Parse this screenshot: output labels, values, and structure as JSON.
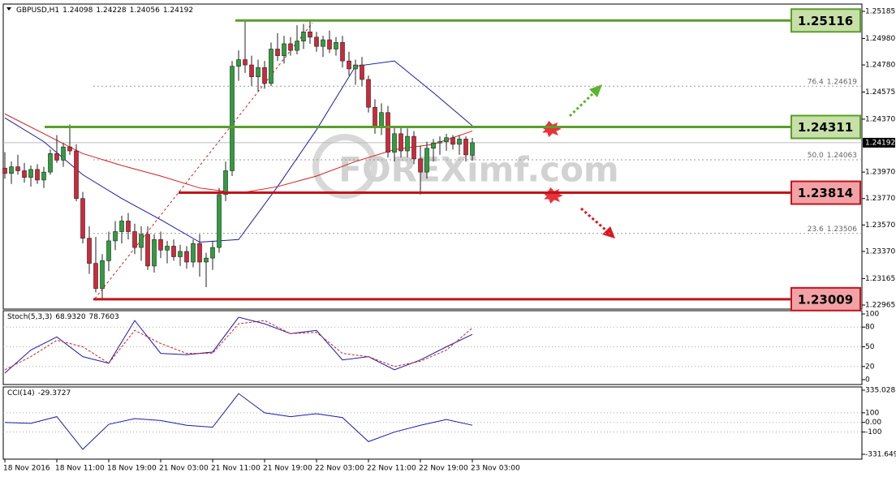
{
  "chart_data": {
    "type": "candlestick",
    "symbol": "GBPUSD,H1",
    "ohlc": [
      1.24098,
      1.24228,
      1.24056,
      1.24192
    ],
    "watermark": "FOREXimf.com",
    "up_color": "#2e9e3e",
    "down_color": "#d0283a",
    "categories": [
      "18 Nov 2016",
      null,
      null,
      null,
      null,
      null,
      null,
      null,
      "18 Nov 11:00",
      null,
      null,
      null,
      null,
      null,
      null,
      null,
      "18 Nov 19:00",
      null,
      null,
      null,
      null,
      null,
      null,
      null,
      "21 Nov 03:00",
      null,
      null,
      null,
      null,
      null,
      null,
      null,
      "21 Nov 11:00",
      null,
      null,
      null,
      null,
      null,
      null,
      null,
      "21 Nov 19:00",
      null,
      null,
      null,
      null,
      null,
      null,
      null,
      "22 Nov 03:00",
      null,
      null,
      null,
      null,
      null,
      null,
      null,
      "22 Nov 11:00",
      null,
      null,
      null,
      null,
      null,
      null,
      null,
      "22 Nov 19:00",
      null,
      null,
      null,
      null,
      null,
      null,
      null,
      "23 Nov 03:00"
    ],
    "open": [
      1.24,
      1.2396,
      1.2401,
      1.2398,
      1.2393,
      1.2399,
      1.2391,
      1.2397,
      1.2411,
      1.2406,
      1.2416,
      1.2413,
      1.2377,
      1.2347,
      1.2328,
      1.2309,
      1.233,
      1.2345,
      1.2352,
      1.236,
      1.2352,
      1.234,
      1.235,
      1.2326,
      1.2346,
      1.2338,
      1.2341,
      1.2333,
      1.2337,
      1.2329,
      1.2343,
      1.2329,
      1.2332,
      1.234,
      1.238,
      1.2398,
      1.2477,
      1.2482,
      1.2478,
      1.2469,
      1.2476,
      1.2464,
      1.249,
      1.2485,
      1.2494,
      1.2489,
      1.2496,
      1.2503,
      1.2499,
      1.2492,
      1.2497,
      1.249,
      1.2495,
      1.2481,
      1.2475,
      1.2478,
      1.2467,
      1.2446,
      1.2431,
      1.2442,
      1.2412,
      1.2426,
      1.2413,
      1.2424,
      1.2407,
      1.2397,
      1.2415,
      1.2419,
      1.242,
      1.2423,
      1.2418,
      1.2422,
      1.24098
    ],
    "high": [
      1.2412,
      1.2405,
      1.241,
      1.2404,
      1.2402,
      1.2403,
      1.2401,
      1.2414,
      1.2425,
      1.2419,
      1.2433,
      1.2418,
      1.2382,
      1.2356,
      1.2348,
      1.2335,
      1.2352,
      1.236,
      1.2364,
      1.2366,
      1.2358,
      1.2356,
      1.2356,
      1.235,
      1.2352,
      1.2345,
      1.2346,
      1.2342,
      1.2341,
      1.2346,
      1.235,
      1.2336,
      1.2345,
      1.2385,
      1.2405,
      1.2481,
      1.2489,
      1.2512,
      1.2485,
      1.2482,
      1.2481,
      1.2495,
      1.2502,
      1.25,
      1.2499,
      1.2508,
      1.2509,
      1.2511,
      1.2503,
      1.25,
      1.2504,
      1.2499,
      1.25,
      1.2488,
      1.2482,
      1.2484,
      1.247,
      1.2452,
      1.2449,
      1.2447,
      1.2432,
      1.2432,
      1.243,
      1.2428,
      1.2417,
      1.242,
      1.2422,
      1.2424,
      1.2426,
      1.2425,
      1.2425,
      1.2424,
      1.24228
    ],
    "low": [
      1.2392,
      1.2388,
      1.2395,
      1.2389,
      1.2386,
      1.2388,
      1.2385,
      1.2395,
      1.2404,
      1.2401,
      1.241,
      1.2375,
      1.2343,
      1.232,
      1.2306,
      1.2301,
      1.2322,
      1.2338,
      1.2343,
      1.2346,
      1.2335,
      1.233,
      1.2323,
      1.2321,
      1.2332,
      1.2328,
      1.233,
      1.2326,
      1.2324,
      1.2325,
      1.2318,
      1.231,
      1.2323,
      1.2336,
      1.2375,
      1.2394,
      1.2466,
      1.2472,
      1.2462,
      1.2458,
      1.246,
      1.2462,
      1.2481,
      1.2479,
      1.2485,
      1.2486,
      1.249,
      1.2494,
      1.2488,
      1.2484,
      1.2487,
      1.2485,
      1.2476,
      1.247,
      1.2463,
      1.2462,
      1.2442,
      1.2426,
      1.2425,
      1.2408,
      1.2405,
      1.2408,
      1.2408,
      1.2403,
      1.238,
      1.2392,
      1.2405,
      1.241,
      1.2413,
      1.2414,
      1.241,
      1.2405,
      1.24056
    ],
    "close": [
      1.2396,
      1.2401,
      1.2398,
      1.2393,
      1.2399,
      1.2391,
      1.2397,
      1.2411,
      1.2406,
      1.2416,
      1.2413,
      1.2377,
      1.2347,
      1.2328,
      1.2309,
      1.233,
      1.2345,
      1.2352,
      1.236,
      1.2352,
      1.234,
      1.235,
      1.2326,
      1.2346,
      1.2338,
      1.2341,
      1.2333,
      1.2337,
      1.2329,
      1.2343,
      1.2329,
      1.2332,
      1.234,
      1.238,
      1.2398,
      1.2477,
      1.2482,
      1.2478,
      1.2469,
      1.2476,
      1.2464,
      1.249,
      1.2485,
      1.2494,
      1.2489,
      1.2496,
      1.2503,
      1.2499,
      1.2492,
      1.2497,
      1.249,
      1.2495,
      1.2481,
      1.2475,
      1.2478,
      1.2467,
      1.2446,
      1.2431,
      1.2442,
      1.2412,
      1.2426,
      1.2413,
      1.2424,
      1.2407,
      1.2397,
      1.2415,
      1.2419,
      1.242,
      1.2423,
      1.2418,
      1.2422,
      1.241,
      1.24192
    ],
    "ylim": [
      1.22965,
      1.25185
    ],
    "yticks": [
      1.25185,
      {
        "value": 1.2498,
        "label": "1.24980"
      },
      {
        "value": 1.2478,
        "label": "1.24780"
      },
      1.24575,
      {
        "value": 1.2437,
        "label": "1.24370"
      },
      {
        "value": 1.2397,
        "label": "1.23970"
      },
      {
        "value": 1.2377,
        "label": "1.23770"
      },
      {
        "value": 1.2357,
        "label": "1.23570"
      },
      {
        "value": 1.2337,
        "label": "1.23370"
      },
      1.23165,
      1.22965
    ],
    "ma_lines": [
      {
        "color": "#1a1aa8",
        "x": [
          0,
          6,
          12,
          18,
          24,
          30,
          36,
          42,
          48,
          54,
          60,
          66,
          72
        ],
        "values": [
          1.2438,
          1.242,
          1.2395,
          1.2377,
          1.2361,
          1.2344,
          1.2346,
          1.2386,
          1.2429,
          1.2477,
          1.2481,
          1.2457,
          1.2432
        ]
      },
      {
        "color": "#d42020",
        "x": [
          0,
          6,
          12,
          18,
          24,
          30,
          36,
          42,
          48,
          54,
          60,
          66,
          72
        ],
        "values": [
          1.2441,
          1.2426,
          1.2411,
          1.2402,
          1.2394,
          1.2385,
          1.2381,
          1.2386,
          1.2394,
          1.2405,
          1.2414,
          1.2418,
          1.2428
        ]
      }
    ],
    "levels": [
      {
        "value": 1.25116,
        "color": "#5a9e2a",
        "box_fill": "#c6e0a8"
      },
      {
        "value": 1.24311,
        "color": "#5a9e2a",
        "box_fill": "#c6e0a8"
      },
      {
        "value": 1.23814,
        "color": "#c0141c",
        "box_fill": "#f2a2a6"
      },
      {
        "value": 1.23009,
        "color": "#c0141c",
        "box_fill": "#f2a2a6"
      }
    ],
    "fib_levels": [
      {
        "ratio": 76.4,
        "price": 1.24619
      },
      {
        "ratio": {
          "value": 50,
          "label": "50.0"
        },
        "price": 1.24063
      },
      {
        "ratio": 23.6,
        "price": 1.23506
      }
    ],
    "indicators": [
      {
        "label": "Stoch(5,3,3)",
        "readings": [
          {
            "value": 68.932,
            "label": "68.9320"
          },
          78.7603
        ],
        "ylim": [
          0,
          100
        ],
        "yticks": [
          100,
          80,
          50,
          20,
          0
        ],
        "x": [
          0,
          4,
          8,
          12,
          16,
          20,
          24,
          28,
          32,
          36,
          40,
          44,
          48,
          52,
          56,
          60,
          64,
          68,
          72
        ],
        "series": [
          {
            "color": "#1a1aa8",
            "dashed": false,
            "values": [
              10,
              45,
              65,
              35,
              25,
              90,
              40,
              38,
              42,
              95,
              85,
              70,
              75,
              30,
              35,
              15,
              30,
              50,
              68.932
            ]
          },
          {
            "color": "#d42020",
            "dashed": true,
            "values": [
              15,
              35,
              60,
              50,
              25,
              75,
              55,
              40,
              40,
              85,
              90,
              70,
              72,
              40,
              35,
              20,
              28,
              45,
              78.7603
            ]
          }
        ]
      },
      {
        "label": "CCI(14)",
        "readings": [
          -29.3727
        ],
        "ylim": [
          -331.649,
          335.0288
        ],
        "yticks": [
          335.0288,
          100,
          {
            "value": 0,
            "label": "0.00"
          },
          -100,
          -331.649
        ],
        "x": [
          0,
          4,
          8,
          12,
          16,
          20,
          24,
          28,
          32,
          36,
          40,
          44,
          48,
          52,
          56,
          60,
          64,
          68,
          72
        ],
        "series": [
          {
            "color": "#1a1aa8",
            "dashed": false,
            "values": [
              0,
              -10,
              60,
              -280,
              -20,
              40,
              20,
              -30,
              -50,
              300,
              100,
              60,
              90,
              50,
              -200,
              -100,
              -30,
              30,
              -29.3727
            ]
          }
        ]
      }
    ]
  }
}
